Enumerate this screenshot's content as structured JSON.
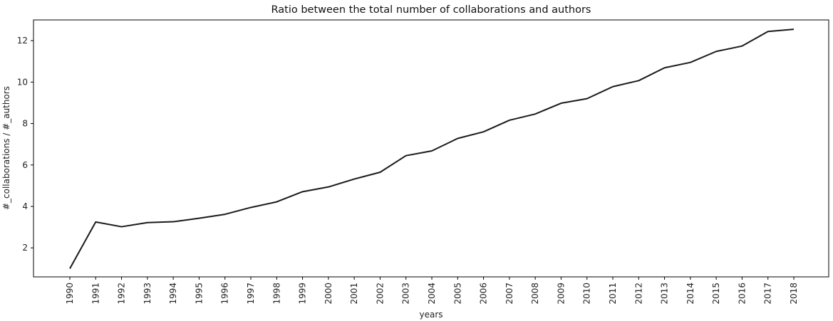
{
  "chart_data": {
    "type": "line",
    "title": "Ratio between the total number of collaborations and authors",
    "xlabel": "years",
    "ylabel": "#_collaborations / #_authors",
    "categories": [
      "1990",
      "1991",
      "1992",
      "1993",
      "1994",
      "1995",
      "1996",
      "1997",
      "1998",
      "1999",
      "2000",
      "2001",
      "2002",
      "2003",
      "2004",
      "2005",
      "2006",
      "2007",
      "2008",
      "2009",
      "2010",
      "2011",
      "2012",
      "2013",
      "2014",
      "2015",
      "2016",
      "2017",
      "2018"
    ],
    "series": [
      {
        "values": [
          1.0,
          3.25,
          3.02,
          3.22,
          3.26,
          3.43,
          3.62,
          3.95,
          4.22,
          4.71,
          4.94,
          5.32,
          5.65,
          6.45,
          6.68,
          7.28,
          7.6,
          8.16,
          8.46,
          8.98,
          9.2,
          9.78,
          10.07,
          10.69,
          10.95,
          11.48,
          11.74,
          12.44,
          12.55
        ]
      }
    ],
    "yticks": [
      2,
      4,
      6,
      8,
      10,
      12
    ],
    "ylim": [
      0.6,
      13.0
    ],
    "grid": false,
    "legend": "none",
    "line_color": "#1a1a1a"
  }
}
